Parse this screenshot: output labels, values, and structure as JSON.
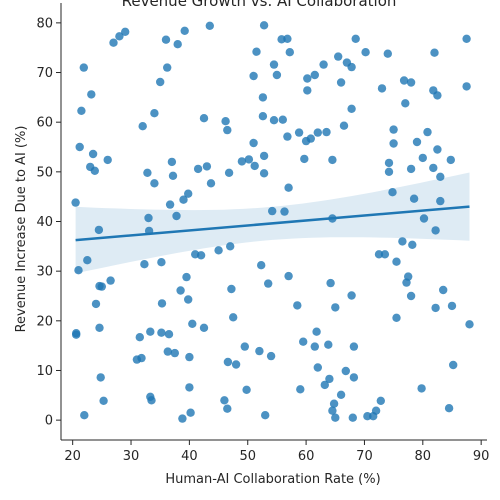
{
  "chart_data": {
    "type": "scatter",
    "title": "Revenue Growth vs. AI Collaboration",
    "xlabel": "Human-AI Collaboration Rate (%)",
    "ylabel": "Revenue Increase Due to AI (%)",
    "xlim": [
      18,
      91
    ],
    "ylim": [
      -4,
      84
    ],
    "xticks": [
      20,
      30,
      40,
      50,
      60,
      70,
      80,
      90
    ],
    "yticks": [
      0,
      10,
      20,
      30,
      40,
      50,
      60,
      70,
      80
    ],
    "grid": false,
    "regression": {
      "slope": 0.1,
      "intercept": 34.2,
      "x_range": [
        20.5,
        88
      ]
    },
    "colors": {
      "points": "#1f77b4",
      "line": "#1f77b4",
      "band": "#1f77b4",
      "axis": "#262626"
    },
    "points": [
      [
        20.5,
        43.8
      ],
      [
        20.6,
        17.5
      ],
      [
        20.6,
        17.2
      ],
      [
        21.0,
        30.2
      ],
      [
        21.2,
        55.0
      ],
      [
        21.5,
        62.3
      ],
      [
        21.9,
        71.0
      ],
      [
        22.0,
        1.0
      ],
      [
        22.5,
        32.2
      ],
      [
        23.0,
        51.0
      ],
      [
        23.2,
        65.6
      ],
      [
        23.5,
        53.6
      ],
      [
        23.8,
        50.2
      ],
      [
        24.0,
        23.4
      ],
      [
        24.5,
        38.3
      ],
      [
        24.6,
        18.6
      ],
      [
        24.6,
        27.0
      ],
      [
        24.8,
        8.6
      ],
      [
        25.0,
        26.9
      ],
      [
        25.3,
        3.9
      ],
      [
        26.0,
        52.4
      ],
      [
        26.5,
        28.1
      ],
      [
        27.0,
        76.0
      ],
      [
        28.0,
        77.3
      ],
      [
        29.0,
        78.2
      ],
      [
        31.0,
        12.2
      ],
      [
        31.5,
        16.7
      ],
      [
        31.8,
        12.5
      ],
      [
        32.0,
        59.2
      ],
      [
        32.3,
        31.4
      ],
      [
        32.8,
        49.8
      ],
      [
        33.0,
        40.7
      ],
      [
        33.1,
        38.1
      ],
      [
        33.3,
        4.7
      ],
      [
        33.3,
        17.8
      ],
      [
        33.5,
        4.0
      ],
      [
        34.0,
        61.8
      ],
      [
        34.0,
        47.7
      ],
      [
        35.0,
        68.1
      ],
      [
        35.2,
        31.8
      ],
      [
        35.2,
        17.6
      ],
      [
        35.3,
        23.5
      ],
      [
        36.0,
        76.6
      ],
      [
        36.2,
        71.0
      ],
      [
        36.3,
        13.8
      ],
      [
        36.5,
        17.3
      ],
      [
        36.7,
        43.4
      ],
      [
        37.0,
        52.0
      ],
      [
        37.2,
        49.2
      ],
      [
        37.5,
        13.5
      ],
      [
        37.8,
        41.1
      ],
      [
        38.0,
        75.7
      ],
      [
        38.5,
        26.1
      ],
      [
        38.8,
        0.3
      ],
      [
        39.0,
        44.4
      ],
      [
        39.2,
        78.4
      ],
      [
        39.5,
        28.8
      ],
      [
        39.8,
        45.6
      ],
      [
        39.8,
        24.3
      ],
      [
        40.0,
        12.7
      ],
      [
        40.0,
        6.6
      ],
      [
        40.2,
        1.5
      ],
      [
        40.5,
        19.4
      ],
      [
        41.0,
        33.4
      ],
      [
        41.5,
        50.6
      ],
      [
        42.0,
        33.2
      ],
      [
        42.5,
        18.6
      ],
      [
        42.5,
        60.8
      ],
      [
        43.0,
        51.1
      ],
      [
        43.5,
        79.4
      ],
      [
        43.7,
        47.7
      ],
      [
        45.0,
        34.2
      ],
      [
        46.0,
        4.0
      ],
      [
        46.2,
        60.2
      ],
      [
        46.5,
        2.3
      ],
      [
        46.5,
        58.4
      ],
      [
        46.6,
        11.7
      ],
      [
        46.8,
        49.8
      ],
      [
        47.0,
        35.0
      ],
      [
        47.2,
        26.4
      ],
      [
        47.5,
        20.7
      ],
      [
        48.0,
        11.2
      ],
      [
        49.0,
        52.1
      ],
      [
        49.5,
        14.8
      ],
      [
        49.8,
        6.1
      ],
      [
        50.2,
        52.5
      ],
      [
        51.0,
        55.8
      ],
      [
        51.0,
        69.3
      ],
      [
        51.2,
        51.2
      ],
      [
        51.5,
        74.2
      ],
      [
        52.0,
        13.9
      ],
      [
        52.3,
        31.2
      ],
      [
        52.6,
        65.0
      ],
      [
        52.6,
        61.2
      ],
      [
        52.8,
        53.2
      ],
      [
        52.8,
        79.5
      ],
      [
        52.8,
        49.7
      ],
      [
        53.0,
        1.0
      ],
      [
        53.5,
        27.5
      ],
      [
        54.0,
        12.9
      ],
      [
        54.2,
        42.1
      ],
      [
        54.5,
        71.6
      ],
      [
        54.5,
        60.4
      ],
      [
        55.0,
        69.5
      ],
      [
        55.8,
        76.7
      ],
      [
        56.0,
        60.5
      ],
      [
        56.3,
        42.0
      ],
      [
        56.8,
        76.8
      ],
      [
        56.8,
        57.1
      ],
      [
        57.0,
        29.0
      ],
      [
        57.0,
        46.8
      ],
      [
        57.2,
        74.1
      ],
      [
        58.5,
        23.1
      ],
      [
        58.8,
        57.9
      ],
      [
        59.0,
        6.2
      ],
      [
        59.5,
        15.8
      ],
      [
        59.7,
        52.6
      ],
      [
        60.0,
        56.2
      ],
      [
        60.2,
        68.8
      ],
      [
        60.2,
        66.4
      ],
      [
        60.8,
        56.7
      ],
      [
        61.5,
        69.5
      ],
      [
        61.5,
        14.8
      ],
      [
        61.8,
        17.8
      ],
      [
        62.0,
        10.6
      ],
      [
        62.0,
        57.9
      ],
      [
        63.0,
        71.6
      ],
      [
        63.2,
        7.1
      ],
      [
        63.5,
        58.0
      ],
      [
        63.8,
        15.2
      ],
      [
        64.0,
        8.3
      ],
      [
        64.2,
        27.6
      ],
      [
        64.5,
        40.6
      ],
      [
        64.5,
        52.4
      ],
      [
        64.5,
        1.9
      ],
      [
        64.8,
        3.3
      ],
      [
        65.0,
        22.7
      ],
      [
        65.0,
        0.5
      ],
      [
        65.5,
        73.2
      ],
      [
        66.0,
        68.0
      ],
      [
        66.0,
        5.1
      ],
      [
        66.5,
        59.3
      ],
      [
        66.8,
        9.9
      ],
      [
        67.0,
        72.0
      ],
      [
        67.8,
        71.1
      ],
      [
        67.8,
        25.1
      ],
      [
        67.8,
        62.7
      ],
      [
        68.0,
        0.5
      ],
      [
        68.2,
        14.8
      ],
      [
        68.2,
        8.6
      ],
      [
        68.5,
        76.8
      ],
      [
        70.2,
        74.1
      ],
      [
        70.5,
        0.8
      ],
      [
        71.5,
        0.8
      ],
      [
        72.0,
        1.9
      ],
      [
        72.5,
        33.4
      ],
      [
        72.8,
        3.9
      ],
      [
        73.0,
        66.8
      ],
      [
        73.5,
        33.4
      ],
      [
        74.0,
        73.8
      ],
      [
        74.2,
        50.0
      ],
      [
        74.2,
        51.8
      ],
      [
        74.8,
        45.9
      ],
      [
        75.0,
        55.7
      ],
      [
        75.0,
        58.5
      ],
      [
        75.5,
        20.6
      ],
      [
        75.5,
        31.9
      ],
      [
        76.5,
        36.0
      ],
      [
        76.8,
        68.4
      ],
      [
        77.0,
        63.8
      ],
      [
        77.2,
        27.7
      ],
      [
        77.5,
        28.9
      ],
      [
        78.0,
        25.0
      ],
      [
        78.0,
        68.0
      ],
      [
        78.0,
        50.6
      ],
      [
        78.2,
        35.3
      ],
      [
        78.5,
        44.6
      ],
      [
        79.0,
        56.0
      ],
      [
        79.8,
        6.4
      ],
      [
        80.0,
        52.8
      ],
      [
        80.2,
        40.6
      ],
      [
        80.8,
        58.0
      ],
      [
        81.8,
        66.4
      ],
      [
        81.8,
        50.8
      ],
      [
        82.0,
        74.0
      ],
      [
        82.2,
        38.2
      ],
      [
        82.2,
        22.6
      ],
      [
        82.5,
        54.5
      ],
      [
        82.5,
        65.4
      ],
      [
        83.0,
        49.0
      ],
      [
        83.0,
        44.1
      ],
      [
        83.5,
        26.2
      ],
      [
        84.5,
        2.4
      ],
      [
        84.8,
        52.4
      ],
      [
        85.0,
        23.0
      ],
      [
        85.2,
        11.1
      ],
      [
        87.5,
        76.8
      ],
      [
        87.5,
        67.2
      ],
      [
        88.0,
        19.3
      ]
    ]
  }
}
